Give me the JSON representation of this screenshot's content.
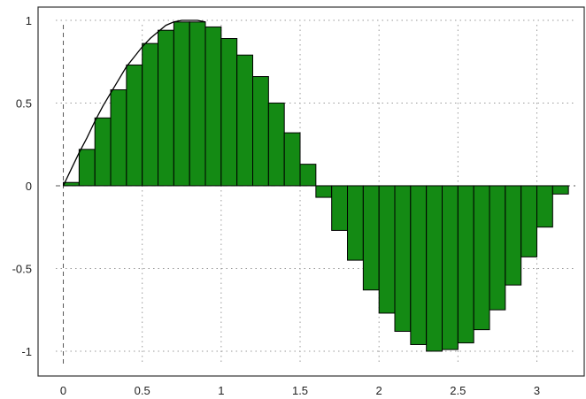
{
  "chart_data": {
    "type": "bar",
    "title": "",
    "xlabel": "",
    "ylabel": "",
    "xlim": [
      -0.16,
      3.3
    ],
    "ylim": [
      -1.15,
      1.08
    ],
    "grid": true,
    "bar_color": "#148a14",
    "bar_edge_color": "#000000",
    "curve_color": "#000000",
    "bar_width": 0.1,
    "x_ticks": [
      {
        "value": 0,
        "label": "0"
      },
      {
        "value": 0.5,
        "label": "0.5"
      },
      {
        "value": 1,
        "label": "1"
      },
      {
        "value": 1.5,
        "label": "1.5"
      },
      {
        "value": 2,
        "label": "2"
      },
      {
        "value": 2.5,
        "label": "2.5"
      },
      {
        "value": 3,
        "label": "3"
      }
    ],
    "y_ticks": [
      {
        "value": 1,
        "label": "1"
      },
      {
        "value": 0.5,
        "label": "0.5"
      },
      {
        "value": 0,
        "label": "0"
      },
      {
        "value": -0.5,
        "label": "-0.5"
      },
      {
        "value": -1,
        "label": "-1"
      }
    ],
    "series": [
      {
        "type": "bar",
        "x_start": [
          0.0,
          0.1,
          0.2,
          0.3,
          0.4,
          0.5,
          0.6,
          0.7,
          0.8,
          0.9,
          1.0,
          1.1,
          1.2,
          1.3,
          1.4,
          1.5,
          1.6,
          1.7,
          1.8,
          1.9,
          2.0,
          2.1,
          2.2,
          2.3,
          2.4,
          2.5,
          2.6,
          2.7,
          2.8,
          2.9,
          3.0,
          3.1
        ],
        "values": [
          0.02,
          0.22,
          0.41,
          0.58,
          0.73,
          0.86,
          0.94,
          0.99,
          0.99,
          0.96,
          0.89,
          0.79,
          0.66,
          0.5,
          0.32,
          0.13,
          -0.07,
          -0.27,
          -0.45,
          -0.63,
          -0.77,
          -0.88,
          -0.96,
          -1.0,
          -0.99,
          -0.95,
          -0.87,
          -0.75,
          -0.6,
          -0.43,
          -0.25,
          -0.05
        ]
      },
      {
        "type": "line",
        "x": [
          0.0,
          0.05,
          0.1,
          0.15,
          0.2,
          0.25,
          0.3,
          0.35,
          0.4,
          0.45,
          0.5,
          0.55,
          0.6,
          0.65,
          0.7,
          0.75,
          0.8,
          0.85,
          0.9
        ],
        "y": [
          0.0,
          0.1,
          0.2,
          0.29,
          0.39,
          0.48,
          0.56,
          0.64,
          0.72,
          0.78,
          0.84,
          0.89,
          0.93,
          0.97,
          0.99,
          1.0,
          1.0,
          1.0,
          0.99
        ]
      }
    ]
  }
}
